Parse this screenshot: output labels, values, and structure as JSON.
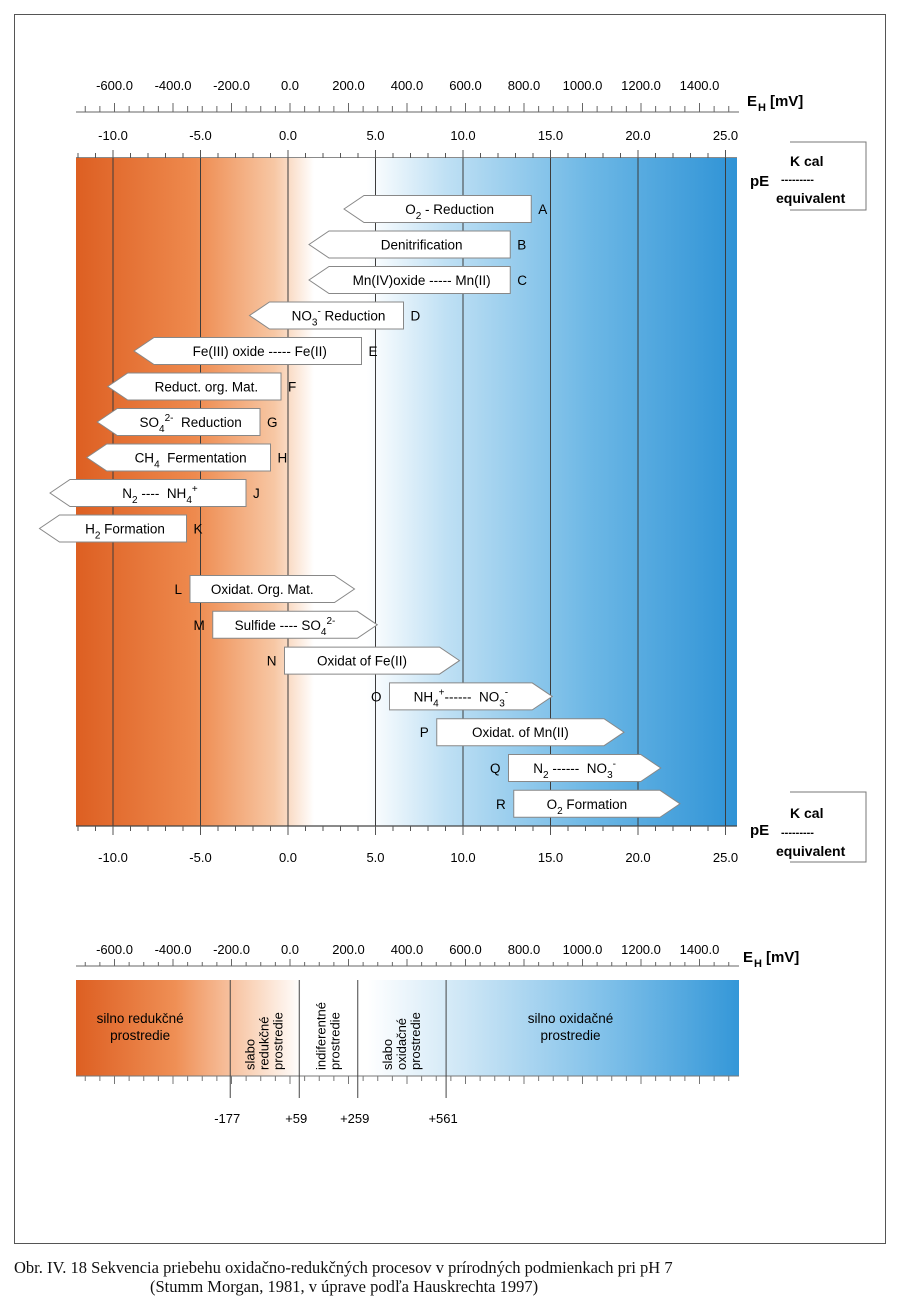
{
  "scale_top": {
    "eh_ticks": [
      "-600.0",
      "-400.0",
      "-200.0",
      "0.0",
      "200.0",
      "400.0",
      "600.0",
      "800.0",
      "1000.0",
      "1200.0",
      "1400.0"
    ],
    "eh_label": "E",
    "eh_sub": "H",
    "eh_unit": "[mV]",
    "pe_ticks": [
      "-10.0",
      "-5.0",
      "0.0",
      "5.0",
      "10.0",
      "15.0",
      "20.0",
      "25.0"
    ],
    "pe_label": "pE",
    "kcal": "K cal",
    "dashes": "---------",
    "equivalent": "equivalent"
  },
  "scale_bottom": {
    "pe_ticks": [
      "-10.0",
      "-5.0",
      "0.0",
      "5.0",
      "10.0",
      "15.0",
      "20.0",
      "25.0"
    ],
    "pe_label": "pE",
    "kcal": "K cal",
    "dashes": "---------",
    "equivalent": "equivalent"
  },
  "reduction_processes": [
    {
      "letter": "A",
      "pe_right": 13.9,
      "pe_tip": 3.2,
      "row": 0,
      "parts": [
        [
          "O"
        ],
        [
          "2",
          "sub"
        ],
        [
          " - Reduction"
        ]
      ]
    },
    {
      "letter": "B",
      "pe_right": 12.7,
      "pe_tip": 1.2,
      "row": 1,
      "parts": [
        [
          "Denitrification"
        ]
      ]
    },
    {
      "letter": "C",
      "pe_right": 12.7,
      "pe_tip": 1.2,
      "row": 2,
      "parts": [
        [
          "Mn(IV)oxide ----- Mn(II)"
        ]
      ]
    },
    {
      "letter": "D",
      "pe_right": 6.6,
      "pe_tip": -2.2,
      "row": 3,
      "parts": [
        [
          "NO"
        ],
        [
          "3",
          "sub"
        ],
        [
          "-",
          "sup"
        ],
        [
          " Reduction"
        ]
      ]
    },
    {
      "letter": "E",
      "pe_right": 4.2,
      "pe_tip": -8.8,
      "row": 4,
      "parts": [
        [
          "Fe(III) oxide ----- Fe(II)"
        ]
      ]
    },
    {
      "letter": "F",
      "pe_right": -0.4,
      "pe_tip": -10.3,
      "row": 5,
      "parts": [
        [
          "Reduct. org. Mat."
        ]
      ]
    },
    {
      "letter": "G",
      "pe_right": -1.6,
      "pe_tip": -10.9,
      "row": 6,
      "parts": [
        [
          "SO"
        ],
        [
          "4",
          "sub"
        ],
        [
          "2-",
          "sup"
        ],
        [
          "  Reduction"
        ]
      ]
    },
    {
      "letter": "H",
      "pe_right": -1.0,
      "pe_tip": -11.5,
      "row": 7,
      "parts": [
        [
          "CH"
        ],
        [
          "4",
          "sub"
        ],
        [
          "  Fermentation"
        ]
      ]
    },
    {
      "letter": "J",
      "pe_right": -2.4,
      "pe_tip": -13.6,
      "row": 8,
      "parts": [
        [
          "N"
        ],
        [
          "2",
          "sub"
        ],
        [
          " ----  NH"
        ],
        [
          "4",
          "sub"
        ],
        [
          "+",
          "sup"
        ]
      ]
    },
    {
      "letter": "K",
      "pe_right": -5.8,
      "pe_tip": -14.2,
      "row": 9,
      "parts": [
        [
          "H"
        ],
        [
          "2",
          "sub"
        ],
        [
          " Formation"
        ]
      ]
    }
  ],
  "oxidation_processes": [
    {
      "letter": "L",
      "pe_left": -5.6,
      "pe_tip": 3.8,
      "row": 0,
      "parts": [
        [
          "Oxidat. Org. Mat."
        ]
      ]
    },
    {
      "letter": "M",
      "pe_left": -4.3,
      "pe_tip": 5.1,
      "row": 1,
      "parts": [
        [
          "Sulfide ---- SO"
        ],
        [
          "4",
          "sub"
        ],
        [
          "2-",
          "sup"
        ]
      ]
    },
    {
      "letter": "N",
      "pe_left": -0.2,
      "pe_tip": 9.8,
      "row": 2,
      "parts": [
        [
          "Oxidat of Fe(II)"
        ]
      ]
    },
    {
      "letter": "O",
      "pe_left": 5.8,
      "pe_tip": 15.1,
      "row": 3,
      "parts": [
        [
          "NH"
        ],
        [
          "4",
          "sub"
        ],
        [
          "+",
          "sup"
        ],
        [
          "------  NO"
        ],
        [
          "3",
          "sub"
        ],
        [
          "-",
          "sup"
        ]
      ]
    },
    {
      "letter": "P",
      "pe_left": 8.5,
      "pe_tip": 19.2,
      "row": 4,
      "parts": [
        [
          "Oxidat. of Mn(II)"
        ]
      ]
    },
    {
      "letter": "Q",
      "pe_left": 12.6,
      "pe_tip": 21.3,
      "row": 5,
      "parts": [
        [
          "N"
        ],
        [
          "2",
          "sub"
        ],
        [
          " ------  NO"
        ],
        [
          "3",
          "sub"
        ],
        [
          "-",
          "sup"
        ]
      ]
    },
    {
      "letter": "R",
      "pe_left": 12.9,
      "pe_tip": 22.4,
      "row": 6,
      "parts": [
        [
          "O"
        ],
        [
          "2",
          "sub"
        ],
        [
          " Formation"
        ]
      ]
    }
  ],
  "environment_scale": {
    "eh_ticks": [
      "-600.0",
      "-400.0",
      "-200.0",
      "0.0",
      "200.0",
      "400.0",
      "600.0",
      "800.0",
      "1000.0",
      "1200.0",
      "1400.0"
    ],
    "eh_label": "E",
    "eh_sub": "H",
    "eh_unit": "[mV]",
    "zones": [
      {
        "lines": [
          "silno redukčné",
          "prostredie"
        ],
        "orientation": "horizontal"
      },
      {
        "lines": [
          "slabo",
          "redukčné",
          "prostredie"
        ],
        "orientation": "vertical"
      },
      {
        "lines": [
          "indiferentné",
          "prostredie"
        ],
        "orientation": "vertical"
      },
      {
        "lines": [
          "slabo",
          "oxidačné",
          "prostredie"
        ],
        "orientation": "vertical"
      },
      {
        "lines": [
          "silno oxidačné",
          "prostredie"
        ],
        "orientation": "horizontal"
      }
    ],
    "boundaries": [
      {
        "mv": -177,
        "label": "-177"
      },
      {
        "mv": 59,
        "label": "+59"
      },
      {
        "mv": 259,
        "label": "+259"
      },
      {
        "mv": 561,
        "label": "+561"
      }
    ]
  },
  "caption": {
    "line1": "Obr. IV. 18 Sekvencia priebehu oxidačno-redukčných procesov v prírodných podmienkach pri pH 7",
    "line2": "(Stumm Morgan, 1981, v úprave podľa Hauskrechta 1997)"
  },
  "colors": {
    "reducing": "#e06a2c",
    "oxidizing": "#3a9bd8",
    "white": "#ffffff",
    "grid": "#4a4a4a"
  }
}
